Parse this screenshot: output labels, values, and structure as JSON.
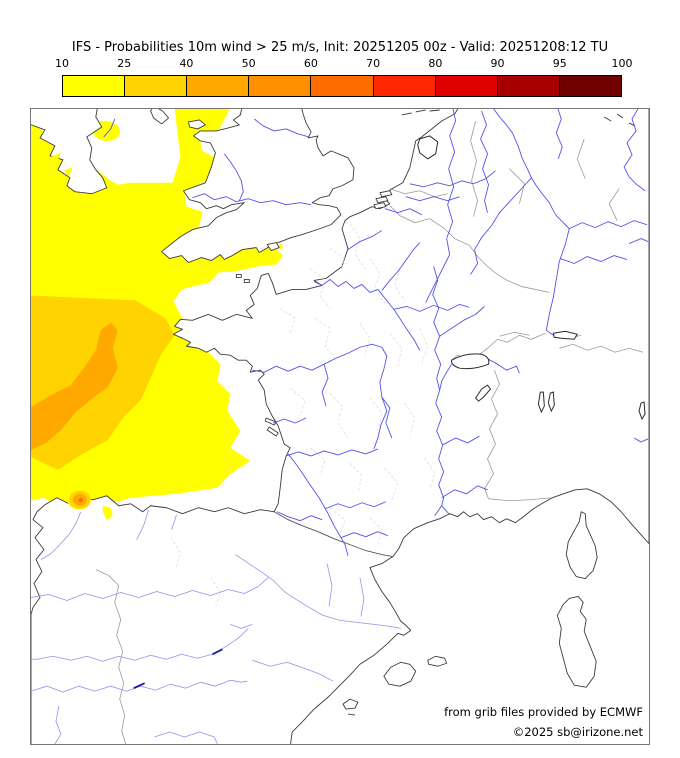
{
  "title": "IFS - Probabilities 10m wind > 25 m/s, Init: 20251205 00z - Valid: 20251208:12 TU",
  "colorbar": {
    "tick_labels": [
      "10",
      "25",
      "40",
      "50",
      "60",
      "70",
      "80",
      "90",
      "95",
      "100"
    ],
    "colors": [
      "#ffff00",
      "#ffd300",
      "#ffa800",
      "#ff9000",
      "#ff6d00",
      "#ff2800",
      "#e00000",
      "#a80000",
      "#700000"
    ]
  },
  "map": {
    "attribution_line1": "from grib files provided by ECMWF",
    "attribution_line2": "©2025 sb@irizone.net",
    "palette": {
      "prob_10_25": "#ffff00",
      "prob_25_40": "#ffd300",
      "prob_40_50": "#ffa800",
      "prob_50_60": "#ff9000",
      "prob_60_70": "#ff6d00",
      "river": "#5353e8",
      "river_minor": "#9393ee",
      "reservoir": "#1a1a9a",
      "coastline": "#3a3a3a",
      "country_border": "#9a9a9a",
      "department_border": "#d8d8d8",
      "frame": "#777777"
    }
  },
  "chart_data": {
    "type": "heatmap",
    "title": "IFS - Probabilities 10m wind > 25 m/s, Init: 20251205 00z - Valid: 20251208:12 TU",
    "model": "IFS",
    "variable": "Probability of 10m wind > 25 m/s (%)",
    "init_time": "20251205 00z",
    "valid_time": "20251208:12 TU",
    "legend_position": "top",
    "legend_ticks": [
      10,
      25,
      40,
      50,
      60,
      70,
      80,
      90,
      95,
      100
    ],
    "legend_colors": [
      "#ffff00",
      "#ffd300",
      "#ffa800",
      "#ff9000",
      "#ff6d00",
      "#ff2800",
      "#e00000",
      "#a80000",
      "#700000"
    ],
    "basemap": "Western Europe: Ireland, Great Britain, France, Benelux, Germany, Alps, Spain, Corsica, Sardinia, Balearics; rivers and administrative borders",
    "regions": [
      {
        "area": "Celtic Sea, western English Channel, Irish Sea and eastern Atlantic",
        "probability_pct": "10-25",
        "color": "#ffff00"
      },
      {
        "area": "Bay of Biscay offshore band (SW-NE oriented)",
        "probability_pct": "25-40",
        "color": "#ffd300"
      },
      {
        "area": "central Bay of Biscay core",
        "probability_pct": "40-50",
        "color": "#ffa800"
      },
      {
        "area": "small spot on Cantabrian coast (northern Spain)",
        "probability_pct": "50-70",
        "color": "#ff6d00"
      }
    ],
    "attribution": [
      "from grib files provided by ECMWF",
      "©2025 sb@irizone.net"
    ]
  }
}
